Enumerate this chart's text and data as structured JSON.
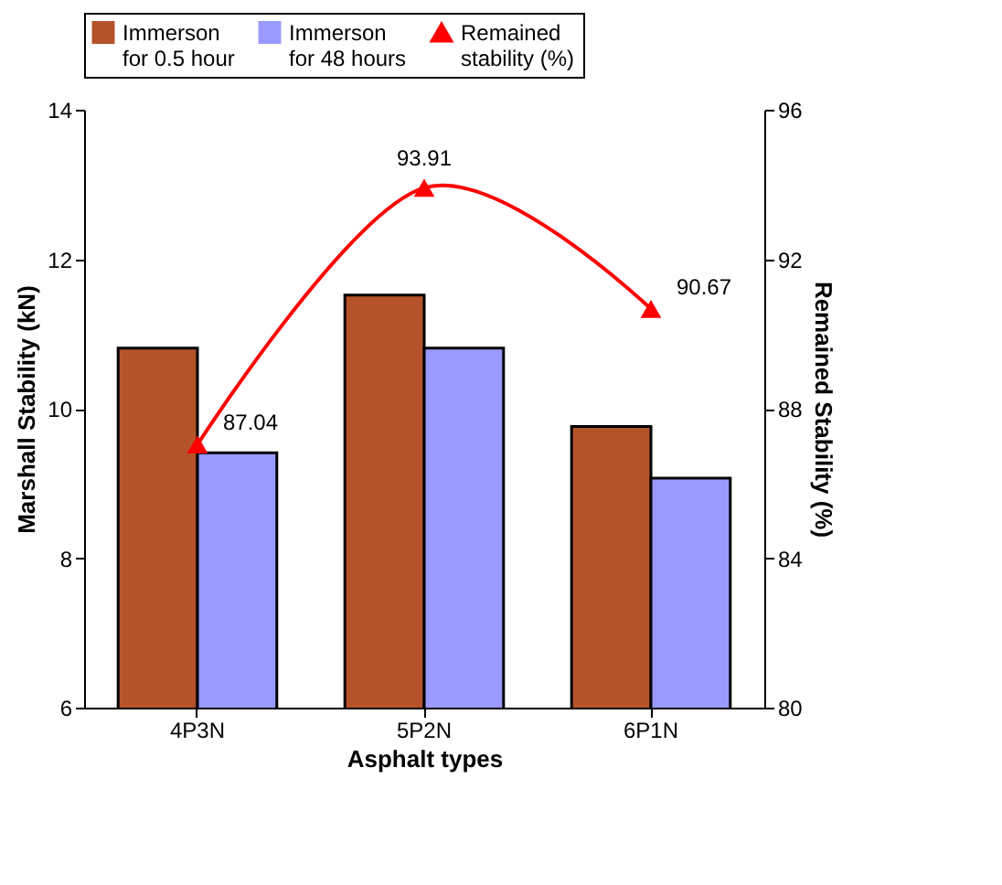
{
  "chart_data": {
    "type": "bar",
    "xlabel": "Asphalt types",
    "ylabel": "Marshall Stability (kN)",
    "y2label": "Remained Stability (%)",
    "categories": [
      "4P3N",
      "5P2N",
      "6P1N"
    ],
    "series": [
      {
        "name": "Immerson for 0.5 hour",
        "color": "#b5532a",
        "values": [
          10.81,
          11.52,
          9.76
        ]
      },
      {
        "name": "Immerson for 48 hours",
        "color": "#9999ff",
        "values": [
          9.41,
          10.81,
          9.07
        ]
      },
      {
        "name": "Remained stability (%)",
        "type": "line",
        "axis": "y2",
        "color": "#ff0000",
        "marker": "triangle",
        "values": [
          87.04,
          93.91,
          90.67
        ],
        "value_labels": [
          "87.04",
          "93.91",
          "90.67"
        ]
      }
    ],
    "ylim": [
      6,
      14
    ],
    "yticks": [
      6,
      8,
      10,
      12,
      14
    ],
    "y2lim": [
      80,
      96
    ],
    "y2ticks": [
      80,
      84,
      88,
      92,
      96
    ],
    "legend": "top",
    "grid": false
  }
}
